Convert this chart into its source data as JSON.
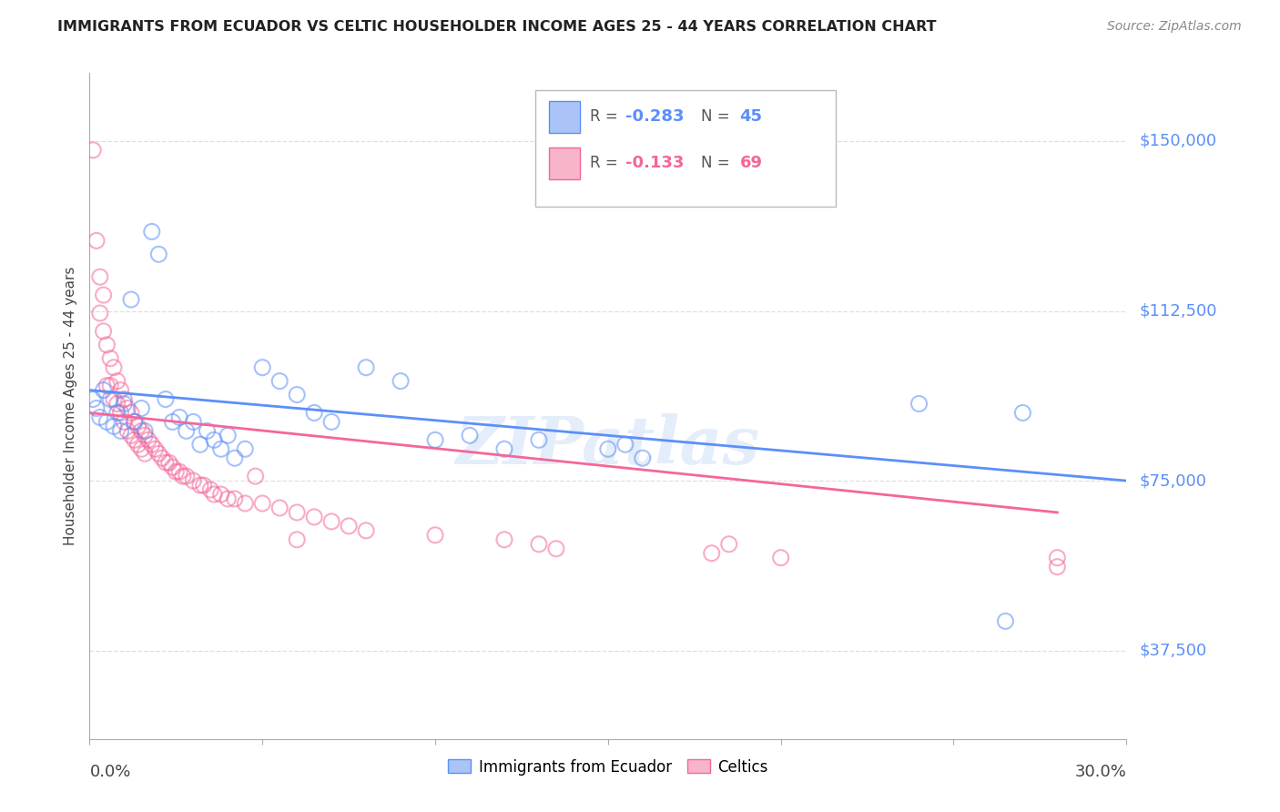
{
  "title": "IMMIGRANTS FROM ECUADOR VS CELTIC HOUSEHOLDER INCOME AGES 25 - 44 YEARS CORRELATION CHART",
  "source": "Source: ZipAtlas.com",
  "ylabel": "Householder Income Ages 25 - 44 years",
  "ytick_labels": [
    "$37,500",
    "$75,000",
    "$112,500",
    "$150,000"
  ],
  "ytick_values": [
    37500,
    75000,
    112500,
    150000
  ],
  "xmin": 0.0,
  "xmax": 0.3,
  "ymin": 18000,
  "ymax": 165000,
  "legend_blue_r": "-0.283",
  "legend_blue_n": "45",
  "legend_pink_r": "-0.133",
  "legend_pink_n": "69",
  "legend_label_blue": "Immigrants from Ecuador",
  "legend_label_pink": "Celtics",
  "blue_color": "#5b8ff9",
  "pink_color": "#f4669b",
  "blue_scatter": [
    [
      0.001,
      93000
    ],
    [
      0.002,
      91000
    ],
    [
      0.003,
      89000
    ],
    [
      0.004,
      95000
    ],
    [
      0.005,
      88000
    ],
    [
      0.006,
      93000
    ],
    [
      0.007,
      87000
    ],
    [
      0.008,
      90000
    ],
    [
      0.009,
      86000
    ],
    [
      0.01,
      92000
    ],
    [
      0.012,
      115000
    ],
    [
      0.013,
      88000
    ],
    [
      0.015,
      91000
    ],
    [
      0.016,
      86000
    ],
    [
      0.018,
      130000
    ],
    [
      0.02,
      125000
    ],
    [
      0.022,
      93000
    ],
    [
      0.024,
      88000
    ],
    [
      0.026,
      89000
    ],
    [
      0.028,
      86000
    ],
    [
      0.03,
      88000
    ],
    [
      0.032,
      83000
    ],
    [
      0.034,
      86000
    ],
    [
      0.036,
      84000
    ],
    [
      0.038,
      82000
    ],
    [
      0.04,
      85000
    ],
    [
      0.042,
      80000
    ],
    [
      0.045,
      82000
    ],
    [
      0.05,
      100000
    ],
    [
      0.055,
      97000
    ],
    [
      0.06,
      94000
    ],
    [
      0.065,
      90000
    ],
    [
      0.07,
      88000
    ],
    [
      0.08,
      100000
    ],
    [
      0.09,
      97000
    ],
    [
      0.1,
      84000
    ],
    [
      0.11,
      85000
    ],
    [
      0.12,
      82000
    ],
    [
      0.13,
      84000
    ],
    [
      0.15,
      82000
    ],
    [
      0.155,
      83000
    ],
    [
      0.16,
      80000
    ],
    [
      0.24,
      92000
    ],
    [
      0.27,
      90000
    ],
    [
      0.265,
      44000
    ]
  ],
  "pink_scatter": [
    [
      0.001,
      148000
    ],
    [
      0.002,
      128000
    ],
    [
      0.003,
      120000
    ],
    [
      0.003,
      112000
    ],
    [
      0.004,
      116000
    ],
    [
      0.004,
      108000
    ],
    [
      0.005,
      105000
    ],
    [
      0.005,
      96000
    ],
    [
      0.006,
      102000
    ],
    [
      0.006,
      96000
    ],
    [
      0.007,
      100000
    ],
    [
      0.007,
      93000
    ],
    [
      0.008,
      97000
    ],
    [
      0.008,
      92000
    ],
    [
      0.009,
      95000
    ],
    [
      0.009,
      90000
    ],
    [
      0.01,
      93000
    ],
    [
      0.01,
      88000
    ],
    [
      0.011,
      91000
    ],
    [
      0.011,
      86000
    ],
    [
      0.012,
      90000
    ],
    [
      0.012,
      85000
    ],
    [
      0.013,
      88000
    ],
    [
      0.013,
      84000
    ],
    [
      0.014,
      87000
    ],
    [
      0.014,
      83000
    ],
    [
      0.015,
      86000
    ],
    [
      0.015,
      82000
    ],
    [
      0.016,
      85000
    ],
    [
      0.016,
      81000
    ],
    [
      0.017,
      84000
    ],
    [
      0.018,
      83000
    ],
    [
      0.019,
      82000
    ],
    [
      0.02,
      81000
    ],
    [
      0.021,
      80000
    ],
    [
      0.022,
      79000
    ],
    [
      0.023,
      79000
    ],
    [
      0.024,
      78000
    ],
    [
      0.025,
      77000
    ],
    [
      0.026,
      77000
    ],
    [
      0.027,
      76000
    ],
    [
      0.028,
      76000
    ],
    [
      0.03,
      75000
    ],
    [
      0.032,
      74000
    ],
    [
      0.033,
      74000
    ],
    [
      0.035,
      73000
    ],
    [
      0.036,
      72000
    ],
    [
      0.038,
      72000
    ],
    [
      0.04,
      71000
    ],
    [
      0.042,
      71000
    ],
    [
      0.045,
      70000
    ],
    [
      0.048,
      76000
    ],
    [
      0.05,
      70000
    ],
    [
      0.055,
      69000
    ],
    [
      0.06,
      68000
    ],
    [
      0.065,
      67000
    ],
    [
      0.07,
      66000
    ],
    [
      0.075,
      65000
    ],
    [
      0.08,
      64000
    ],
    [
      0.06,
      62000
    ],
    [
      0.1,
      63000
    ],
    [
      0.12,
      62000
    ],
    [
      0.13,
      61000
    ],
    [
      0.135,
      60000
    ],
    [
      0.18,
      59000
    ],
    [
      0.185,
      61000
    ],
    [
      0.2,
      58000
    ],
    [
      0.28,
      58000
    ],
    [
      0.28,
      56000
    ]
  ],
  "blue_line_x": [
    0.0,
    0.3
  ],
  "blue_line_y": [
    95000,
    75000
  ],
  "pink_line_x": [
    0.0,
    0.28
  ],
  "pink_line_y": [
    90000,
    68000
  ],
  "watermark": "ZIPatlas",
  "background_color": "#ffffff",
  "grid_color": "#d8d8d8"
}
